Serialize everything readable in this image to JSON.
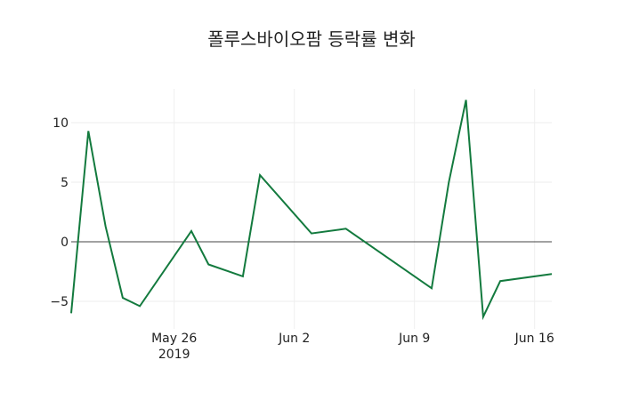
{
  "chart_data": {
    "type": "line",
    "title": "폴루스바이오팜 등락률 변화",
    "xlabel": "",
    "ylabel": "",
    "x": [
      "2019-05-20",
      "2019-05-21",
      "2019-05-22",
      "2019-05-23",
      "2019-05-24",
      "2019-05-27",
      "2019-05-28",
      "2019-05-30",
      "2019-05-31",
      "2019-06-03",
      "2019-06-05",
      "2019-06-10",
      "2019-06-11",
      "2019-06-12",
      "2019-06-13",
      "2019-06-14",
      "2019-06-17"
    ],
    "series": [
      {
        "name": "등락률",
        "color": "#137a3e",
        "values": [
          -6.0,
          9.3,
          1.3,
          -4.7,
          -5.4,
          0.9,
          -1.9,
          -2.9,
          5.6,
          0.7,
          1.1,
          -3.9,
          5.0,
          11.9,
          -6.3,
          -3.3,
          -2.7
        ]
      }
    ],
    "ylim": [
      -6.3,
      11.9
    ],
    "y_ticks": [
      {
        "value": 10,
        "label": "10"
      },
      {
        "value": 5,
        "label": "5"
      },
      {
        "value": 0,
        "label": "0"
      },
      {
        "value": -5,
        "label": "−5"
      }
    ],
    "x_ticks": [
      {
        "date": "2019-05-26",
        "label": "May 26",
        "sublabel": "2019"
      },
      {
        "date": "2019-06-02",
        "label": "Jun 2",
        "sublabel": ""
      },
      {
        "date": "2019-06-09",
        "label": "Jun 9",
        "sublabel": ""
      },
      {
        "date": "2019-06-16",
        "label": "Jun 16",
        "sublabel": ""
      }
    ],
    "grid": true,
    "zero_line": true,
    "legend": "none"
  }
}
